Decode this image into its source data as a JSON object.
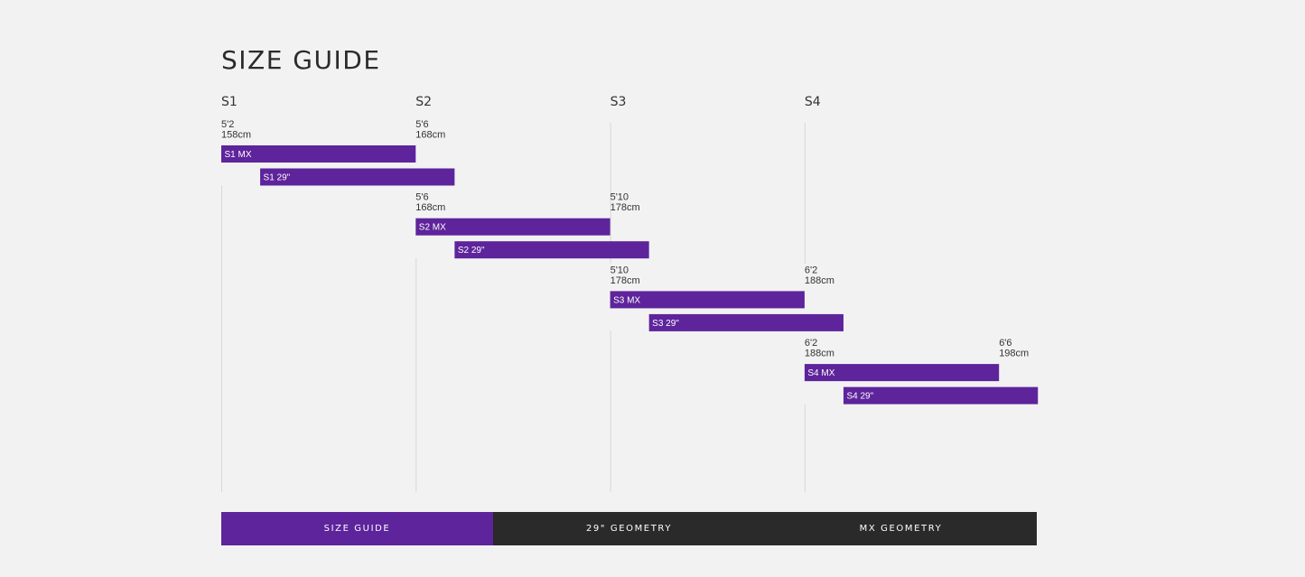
{
  "page": {
    "title": "SIZE GUIDE"
  },
  "colors": {
    "accent": "#5e249b",
    "tab_bg": "#2a2a2a",
    "background": "#f2f2f3",
    "gridline": "#d8d8d8"
  },
  "tabs": [
    {
      "label": "SIZE GUIDE",
      "active": true
    },
    {
      "label": "29\" GEOMETRY",
      "active": false
    },
    {
      "label": "MX GEOMETRY",
      "active": false
    }
  ],
  "chart_data": {
    "type": "bar",
    "orientation": "horizontal-range",
    "title": "SIZE GUIDE",
    "categories": [
      "S1",
      "S2",
      "S3",
      "S4"
    ],
    "groups": [
      {
        "size": "S1",
        "start_label": [
          "5'2",
          "158cm"
        ],
        "end_label": [
          "5'6",
          "168cm"
        ],
        "bars": [
          {
            "name": "S1 MX",
            "start_size": 0,
            "end_size": 1
          },
          {
            "name": "S1 29\"",
            "start_size": 0.2,
            "end_size": 1.2
          }
        ]
      },
      {
        "size": "S2",
        "start_label": [
          "5'6",
          "168cm"
        ],
        "end_label": [
          "5'10",
          "178cm"
        ],
        "bars": [
          {
            "name": "S2 MX",
            "start_size": 1,
            "end_size": 2
          },
          {
            "name": "S2 29\"",
            "start_size": 1.2,
            "end_size": 2.2
          }
        ]
      },
      {
        "size": "S3",
        "start_label": [
          "5'10",
          "178cm"
        ],
        "end_label": [
          "6'2",
          "188cm"
        ],
        "bars": [
          {
            "name": "S3 MX",
            "start_size": 2,
            "end_size": 3
          },
          {
            "name": "S3 29\"",
            "start_size": 2.2,
            "end_size": 3.2
          }
        ]
      },
      {
        "size": "S4",
        "start_label": [
          "6'2",
          "188cm"
        ],
        "end_label": [
          "6'6",
          "198cm"
        ],
        "bars": [
          {
            "name": "S4 MX",
            "start_size": 3,
            "end_size": 4
          },
          {
            "name": "S4 29\"",
            "start_size": 3.2,
            "end_size": 4.2
          }
        ]
      }
    ],
    "grid": true,
    "legend": "none"
  }
}
